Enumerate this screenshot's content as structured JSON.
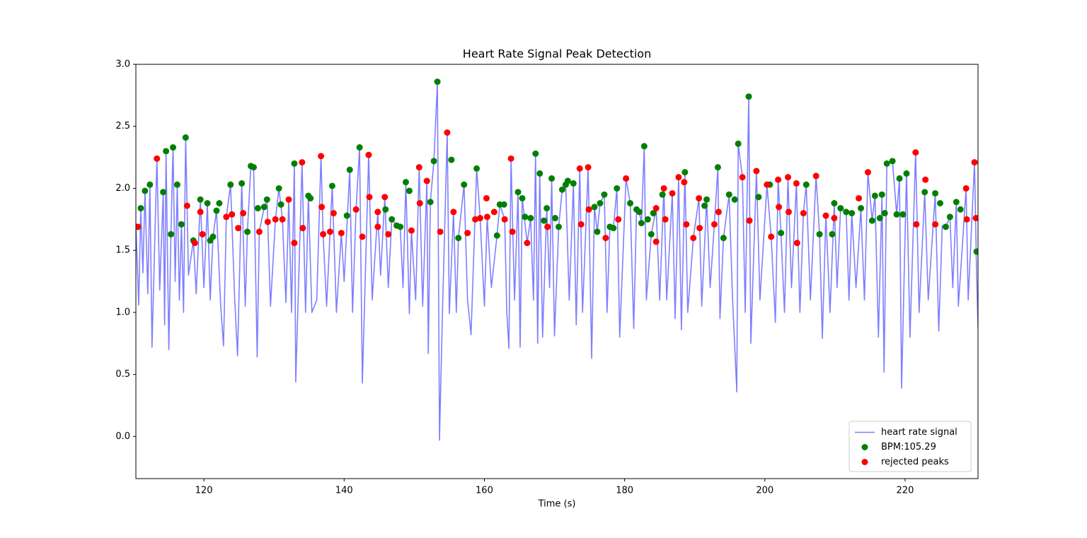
{
  "chart_data": {
    "type": "line",
    "title": "Heart Rate Signal Peak Detection",
    "x_label": "Time (s)",
    "xlim": [
      110.3,
      230.4
    ],
    "ylim": [
      -0.34,
      3.0
    ],
    "xticks": [
      120,
      140,
      160,
      180,
      200,
      220
    ],
    "yticks": [
      {
        "value": 0,
        "label": "0.0"
      },
      {
        "value": 0.5,
        "label": "0.5"
      },
      {
        "value": 1,
        "label": "1.0"
      },
      {
        "value": 1.5,
        "label": "1.5"
      },
      {
        "value": 2,
        "label": "2.0"
      },
      {
        "value": 2.5,
        "label": "2.5"
      },
      {
        "value": 3,
        "label": "3.0"
      }
    ],
    "legend_position": "lower right",
    "series": [
      {
        "name": "heart rate signal",
        "type": "line",
        "color": "#7f7fff",
        "x": [
          110.3,
          110.7,
          111.0,
          111.3,
          111.6,
          112.0,
          112.3,
          112.6,
          113.3,
          113.7,
          114.2,
          114.4,
          114.6,
          115.0,
          115.3,
          115.6,
          115.9,
          116.2,
          116.5,
          116.8,
          117.1,
          117.4,
          117.8,
          118.5,
          118.9,
          119.5,
          120.0,
          120.5,
          120.9,
          121.3,
          121.8,
          122.4,
          122.8,
          123.2,
          123.8,
          124.4,
          124.8,
          125.4,
          125.9,
          126.2,
          126.7,
          127.1,
          127.6,
          127.9,
          128.6,
          129.0,
          129.5,
          130.2,
          130.7,
          131.2,
          131.7,
          132.1,
          132.5,
          132.9,
          133.1,
          134.0,
          134.5,
          134.9,
          135.4,
          136.1,
          136.7,
          137.0,
          137.5,
          138.3,
          138.9,
          139.6,
          140.0,
          140.8,
          141.2,
          141.7,
          142.2,
          142.6,
          143.5,
          144.0,
          144.8,
          145.2,
          145.8,
          146.3,
          146.8,
          147.5,
          148.0,
          148.4,
          148.8,
          149.3,
          149.6,
          150.2,
          150.7,
          151.2,
          151.8,
          152.0,
          152.3,
          152.8,
          153.3,
          153.6,
          154.0,
          154.7,
          155.0,
          155.6,
          156.0,
          156.3,
          157.1,
          157.6,
          158.1,
          158.9,
          159.4,
          160.0,
          160.4,
          161.0,
          161.8,
          162.2,
          162.9,
          163.2,
          163.5,
          163.8,
          164.3,
          164.8,
          165.1,
          165.4,
          166.1,
          166.6,
          167.0,
          167.3,
          167.6,
          167.9,
          168.3,
          168.9,
          169.3,
          169.6,
          170.0,
          170.6,
          171.1,
          171.6,
          172.1,
          172.7,
          173.1,
          173.6,
          174.0,
          174.8,
          175.3,
          175.7,
          176.1,
          176.5,
          177.1,
          177.5,
          177.9,
          178.4,
          178.9,
          179.3,
          180.2,
          180.8,
          181.3,
          181.7,
          182.1,
          182.4,
          182.8,
          183.1,
          183.8,
          184.5,
          185.0,
          185.6,
          186.0,
          186.8,
          187.2,
          187.7,
          188.1,
          188.6,
          189.0,
          189.8,
          190.6,
          191.0,
          191.7,
          192.2,
          192.8,
          193.3,
          193.6,
          194.1,
          194.9,
          195.4,
          196.0,
          196.2,
          196.8,
          197.2,
          197.7,
          198.0,
          198.8,
          199.3,
          200.3,
          200.9,
          201.5,
          201.9,
          202.3,
          202.8,
          203.3,
          203.8,
          204.5,
          205.0,
          205.5,
          205.9,
          206.5,
          207.3,
          207.8,
          208.2,
          208.7,
          209.3,
          209.9,
          210.3,
          210.8,
          211.6,
          212.0,
          212.4,
          213.0,
          213.7,
          214.2,
          214.7,
          215.3,
          215.7,
          216.2,
          216.7,
          217.0,
          217.4,
          218.2,
          218.8,
          219.2,
          219.5,
          220.2,
          220.7,
          221.5,
          222.0,
          222.8,
          223.3,
          224.3,
          224.8,
          225.3,
          225.8,
          226.4,
          226.8,
          227.3,
          227.6,
          228.7,
          229.0,
          229.9,
          230.2,
          230.4
        ],
        "values": [
          1.72,
          1.06,
          1.84,
          1.32,
          1.98,
          1.15,
          2.03,
          0.72,
          2.24,
          1.18,
          1.97,
          0.9,
          2.3,
          0.7,
          1.63,
          2.33,
          1.25,
          2.03,
          1.1,
          1.71,
          1.0,
          2.41,
          1.3,
          1.58,
          1.15,
          1.91,
          1.2,
          1.88,
          1.1,
          1.61,
          1.82,
          1.05,
          0.73,
          1.77,
          2.03,
          1.1,
          0.65,
          2.04,
          1.05,
          1.65,
          2.18,
          2.17,
          0.64,
          1.65,
          1.85,
          1.91,
          1.05,
          1.75,
          2.0,
          1.75,
          1.08,
          1.91,
          1.0,
          2.2,
          0.44,
          2.21,
          1.0,
          1.94,
          1.0,
          1.1,
          2.26,
          1.63,
          1.05,
          2.02,
          1.0,
          1.64,
          1.25,
          2.15,
          1.0,
          1.83,
          2.33,
          0.43,
          2.27,
          1.1,
          1.81,
          1.3,
          1.93,
          1.2,
          1.75,
          1.7,
          1.69,
          1.2,
          2.05,
          0.99,
          1.66,
          1.1,
          2.17,
          1.05,
          2.06,
          0.67,
          1.89,
          2.22,
          2.86,
          -0.03,
          0.95,
          2.45,
          0.99,
          1.81,
          1.0,
          1.6,
          2.03,
          1.1,
          0.82,
          2.16,
          1.76,
          1.05,
          1.77,
          1.2,
          1.62,
          1.87,
          1.75,
          1.0,
          0.71,
          2.24,
          1.1,
          1.97,
          0.72,
          1.92,
          1.56,
          1.76,
          1.1,
          2.28,
          0.75,
          2.12,
          0.8,
          1.84,
          1.2,
          2.08,
          0.81,
          1.69,
          1.99,
          2.03,
          1.1,
          2.04,
          0.9,
          2.16,
          1.0,
          2.17,
          0.63,
          1.85,
          1.65,
          1.88,
          1.95,
          1.0,
          1.69,
          1.68,
          2.0,
          0.8,
          2.08,
          1.88,
          0.87,
          1.83,
          1.81,
          1.72,
          2.34,
          1.1,
          1.63,
          1.84,
          1.1,
          2.0,
          1.1,
          1.96,
          0.95,
          2.09,
          0.86,
          2.13,
          1.0,
          1.6,
          1.92,
          1.05,
          1.91,
          1.2,
          1.71,
          2.17,
          0.95,
          1.6,
          1.95,
          1.1,
          0.36,
          2.36,
          2.09,
          1.0,
          2.74,
          0.75,
          2.14,
          1.1,
          2.03,
          1.61,
          0.92,
          2.07,
          1.64,
          1.0,
          2.09,
          1.2,
          2.04,
          1.0,
          1.8,
          2.03,
          1.1,
          2.1,
          1.63,
          0.79,
          1.78,
          1.0,
          1.88,
          1.2,
          1.84,
          1.81,
          1.1,
          1.8,
          1.2,
          1.84,
          1.1,
          2.13,
          1.74,
          1.94,
          0.8,
          1.95,
          0.52,
          2.2,
          2.22,
          1.79,
          2.08,
          0.39,
          2.12,
          0.8,
          2.29,
          1.0,
          1.97,
          1.1,
          1.96,
          0.85,
          1.7,
          1.69,
          1.77,
          1.2,
          1.89,
          1.05,
          2.0,
          1.1,
          2.21,
          1.3,
          0.88
        ]
      },
      {
        "name": "BPM:105.29",
        "type": "scatter",
        "color": "#008000",
        "x": [
          111.0,
          111.6,
          112.3,
          114.2,
          114.6,
          115.3,
          115.6,
          116.2,
          116.8,
          117.4,
          118.5,
          119.5,
          120.5,
          120.9,
          121.3,
          121.8,
          122.2,
          123.8,
          125.4,
          126.2,
          126.7,
          127.1,
          127.7,
          128.6,
          129.0,
          130.7,
          131.0,
          132.9,
          134.9,
          135.2,
          138.3,
          140.4,
          140.8,
          142.2,
          145.9,
          146.8,
          147.5,
          148.0,
          148.8,
          149.3,
          152.3,
          152.8,
          153.3,
          155.3,
          156.3,
          157.1,
          158.9,
          161.8,
          162.2,
          162.8,
          164.8,
          165.4,
          165.8,
          166.6,
          167.3,
          167.9,
          168.5,
          168.9,
          169.6,
          170.1,
          170.6,
          171.1,
          171.6,
          171.9,
          172.7,
          175.7,
          176.1,
          176.5,
          177.1,
          177.9,
          178.4,
          178.9,
          180.8,
          181.7,
          182.1,
          182.4,
          182.8,
          183.3,
          183.8,
          184.1,
          185.4,
          188.6,
          191.4,
          191.7,
          193.3,
          194.1,
          194.9,
          195.7,
          196.2,
          197.7,
          199.1,
          200.7,
          202.3,
          205.9,
          207.8,
          209.6,
          209.9,
          210.8,
          211.6,
          212.4,
          213.7,
          215.3,
          215.7,
          216.4,
          216.7,
          217.1,
          217.4,
          218.2,
          218.8,
          219.2,
          219.7,
          220.2,
          222.8,
          224.3,
          225.0,
          225.8,
          226.4,
          227.3,
          227.9,
          230.2
        ],
        "values": [
          1.84,
          1.98,
          2.03,
          1.97,
          2.3,
          1.63,
          2.33,
          2.03,
          1.71,
          2.41,
          1.58,
          1.91,
          1.88,
          1.58,
          1.61,
          1.82,
          1.88,
          2.03,
          2.04,
          1.65,
          2.18,
          2.17,
          1.84,
          1.85,
          1.91,
          2.0,
          1.87,
          2.2,
          1.94,
          1.92,
          2.02,
          1.78,
          2.15,
          2.33,
          1.83,
          1.75,
          1.7,
          1.69,
          2.05,
          1.98,
          1.89,
          2.22,
          2.86,
          2.23,
          1.6,
          2.03,
          2.16,
          1.62,
          1.87,
          1.87,
          1.97,
          1.92,
          1.77,
          1.76,
          2.28,
          2.12,
          1.74,
          1.84,
          2.08,
          1.76,
          1.69,
          1.99,
          2.03,
          2.06,
          2.04,
          1.85,
          1.65,
          1.88,
          1.95,
          1.69,
          1.68,
          2.0,
          1.88,
          1.83,
          1.81,
          1.72,
          2.34,
          1.75,
          1.63,
          1.8,
          1.95,
          2.13,
          1.86,
          1.91,
          2.17,
          1.6,
          1.95,
          1.91,
          2.36,
          2.74,
          1.93,
          2.03,
          1.64,
          2.03,
          1.63,
          1.63,
          1.88,
          1.84,
          1.81,
          1.8,
          1.84,
          1.74,
          1.94,
          1.76,
          1.95,
          1.8,
          2.2,
          2.22,
          1.79,
          2.08,
          1.79,
          2.12,
          1.97,
          1.96,
          1.88,
          1.69,
          1.77,
          1.89,
          1.83,
          1.49
        ]
      },
      {
        "name": "rejected peaks",
        "type": "scatter",
        "color": "#ff0000",
        "x": [
          110.6,
          113.3,
          117.6,
          118.7,
          119.5,
          119.8,
          123.2,
          124.0,
          124.9,
          125.6,
          127.9,
          129.1,
          130.2,
          131.2,
          132.1,
          132.9,
          134.0,
          134.1,
          136.7,
          136.8,
          137.0,
          138.0,
          138.5,
          139.6,
          141.7,
          142.6,
          143.5,
          143.6,
          144.8,
          144.8,
          145.8,
          146.3,
          149.6,
          150.7,
          150.8,
          151.8,
          153.7,
          154.7,
          155.6,
          157.6,
          158.7,
          159.4,
          160.3,
          160.4,
          161.4,
          162.9,
          163.8,
          164.0,
          166.1,
          169.0,
          173.6,
          173.8,
          174.8,
          174.9,
          177.3,
          179.1,
          180.2,
          184.5,
          184.5,
          185.6,
          185.8,
          186.8,
          187.7,
          188.5,
          188.8,
          189.8,
          190.6,
          190.7,
          192.8,
          193.4,
          196.8,
          197.8,
          198.8,
          200.3,
          200.9,
          201.9,
          202.0,
          203.3,
          203.4,
          204.5,
          204.6,
          205.5,
          207.3,
          208.7,
          209.9,
          213.4,
          214.7,
          221.5,
          221.6,
          222.9,
          224.3,
          228.7,
          228.8,
          229.9,
          230.1
        ],
        "values": [
          1.69,
          2.24,
          1.86,
          1.56,
          1.81,
          1.63,
          1.77,
          1.79,
          1.68,
          1.8,
          1.65,
          1.73,
          1.75,
          1.75,
          1.91,
          1.56,
          2.21,
          1.68,
          2.26,
          1.85,
          1.63,
          1.65,
          1.8,
          1.64,
          1.83,
          1.61,
          2.27,
          1.93,
          1.81,
          1.69,
          1.93,
          1.63,
          1.66,
          2.17,
          1.88,
          2.06,
          1.65,
          2.45,
          1.81,
          1.64,
          1.75,
          1.76,
          1.92,
          1.77,
          1.81,
          1.75,
          2.24,
          1.65,
          1.56,
          1.69,
          2.16,
          1.71,
          2.17,
          1.83,
          1.6,
          1.75,
          2.08,
          1.57,
          1.84,
          2.0,
          1.75,
          1.96,
          2.09,
          2.05,
          1.71,
          1.6,
          1.92,
          1.68,
          1.71,
          1.81,
          2.09,
          1.74,
          2.14,
          2.03,
          1.61,
          2.07,
          1.85,
          2.09,
          1.81,
          2.04,
          1.56,
          1.8,
          2.1,
          1.78,
          1.76,
          1.92,
          2.13,
          2.29,
          1.71,
          2.07,
          1.71,
          2.0,
          1.75,
          2.21,
          1.76
        ]
      }
    ]
  }
}
